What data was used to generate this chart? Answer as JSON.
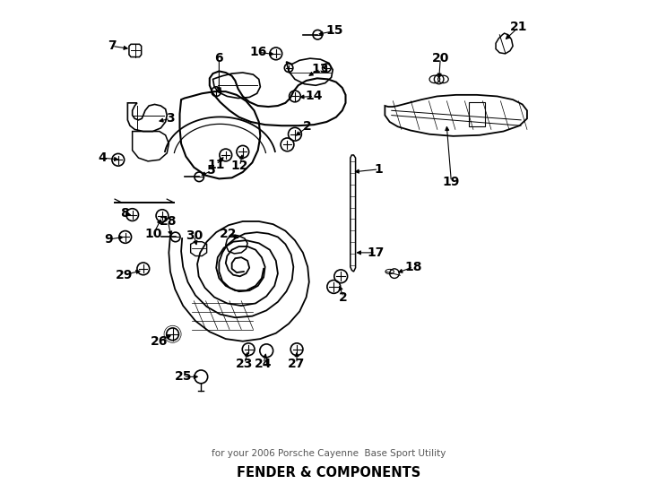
{
  "title": "FENDER & COMPONENTS",
  "subtitle": "for your 2006 Porsche Cayenne  Base Sport Utility",
  "bg": "#ffffff",
  "lc": "#000000",
  "label_positions": {
    "1": [
      0.593,
      0.368,
      0.628,
      0.368
    ],
    "2a": [
      0.43,
      0.285,
      0.452,
      0.262
    ],
    "2b": [
      0.53,
      0.59,
      0.53,
      0.618
    ],
    "3": [
      0.132,
      0.268,
      0.162,
      0.262
    ],
    "4": [
      0.052,
      0.33,
      0.018,
      0.33
    ],
    "5": [
      0.218,
      0.368,
      0.248,
      0.355
    ],
    "6": [
      0.268,
      0.148,
      0.268,
      0.12
    ],
    "7": [
      0.078,
      0.1,
      0.04,
      0.096
    ],
    "8": [
      0.1,
      0.452,
      0.078,
      0.448
    ],
    "9": [
      0.078,
      0.5,
      0.04,
      0.502
    ],
    "10": [
      0.148,
      0.458,
      0.13,
      0.492
    ],
    "11": [
      0.282,
      0.325,
      0.262,
      0.344
    ],
    "12": [
      0.318,
      0.318,
      0.312,
      0.348
    ],
    "13": [
      0.448,
      0.155,
      0.478,
      0.138
    ],
    "14": [
      0.432,
      0.198,
      0.468,
      0.196
    ],
    "15": [
      0.468,
      0.068,
      0.51,
      0.062
    ],
    "16": [
      0.388,
      0.108,
      0.352,
      0.104
    ],
    "17": [
      0.562,
      0.538,
      0.598,
      0.532
    ],
    "18": [
      0.638,
      0.572,
      0.672,
      0.558
    ],
    "19": [
      0.748,
      0.348,
      0.756,
      0.378
    ],
    "20": [
      0.732,
      0.148,
      0.732,
      0.12
    ],
    "21": [
      0.862,
      0.082,
      0.895,
      0.054
    ],
    "22": [
      0.322,
      0.502,
      0.295,
      0.488
    ],
    "23": [
      0.33,
      0.732,
      0.322,
      0.762
    ],
    "24": [
      0.368,
      0.732,
      0.362,
      0.762
    ],
    "25": [
      0.23,
      0.792,
      0.192,
      0.79
    ],
    "26": [
      0.17,
      0.698,
      0.142,
      0.712
    ],
    "27": [
      0.432,
      0.732,
      0.432,
      0.762
    ],
    "28": [
      0.168,
      0.488,
      0.162,
      0.462
    ],
    "29": [
      0.108,
      0.562,
      0.072,
      0.572
    ],
    "30": [
      0.218,
      0.522,
      0.215,
      0.495
    ]
  }
}
